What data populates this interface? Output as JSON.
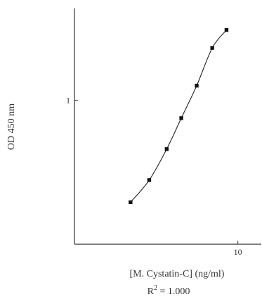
{
  "chart_data": {
    "type": "line",
    "title": "",
    "xlabel": "[M. Cystatin-C] (ng/ml)",
    "ylabel": "OD 450 nm",
    "annotation": {
      "prefix": "R",
      "superscript": "2",
      "suffix": " = 1.000"
    },
    "x_scale": "log",
    "y_scale": "log",
    "xlim": [
      1.6,
      13
    ],
    "ylim": [
      0.2,
      2.8
    ],
    "x_ticks": [
      {
        "value": 10,
        "label": "10"
      }
    ],
    "y_ticks": [
      {
        "value": 1,
        "label": "1"
      }
    ],
    "grid": false,
    "series": [
      {
        "x": [
          3.0,
          3.7,
          4.5,
          5.3,
          6.3,
          7.5,
          8.8
        ],
        "y": [
          0.32,
          0.41,
          0.58,
          0.82,
          1.18,
          1.8,
          2.2
        ]
      }
    ]
  }
}
